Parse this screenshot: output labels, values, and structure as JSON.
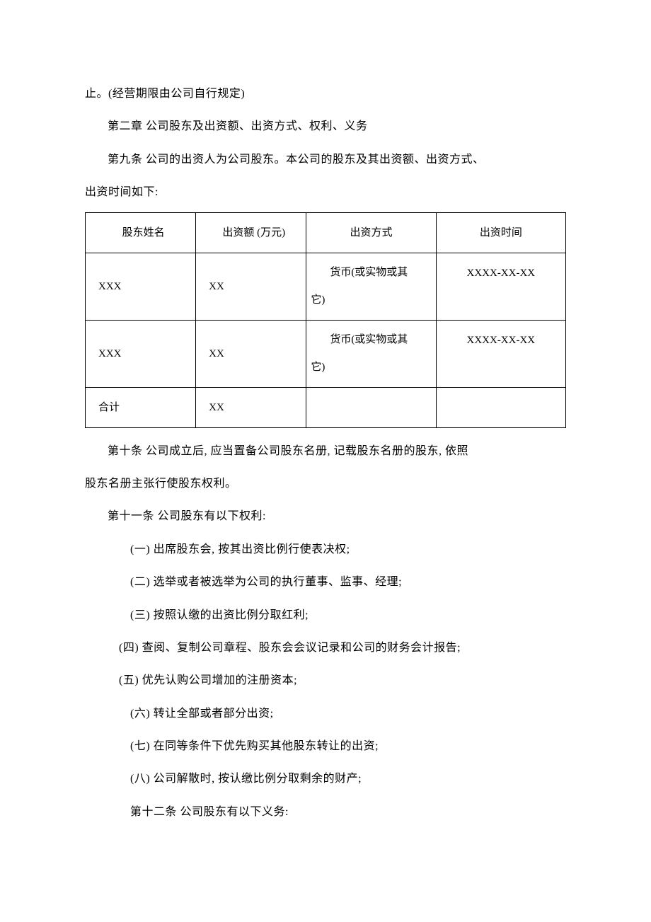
{
  "para1": "止。(经营期限由公司自行规定)",
  "chapter2": "第二章   公司股东及出资额、出资方式、权利、义务",
  "article9": "第九条 公司的出资人为公司股东。本公司的股东及其出资额、出资方式、",
  "article9_cont": "出资时间如下:",
  "table": {
    "headers": [
      "股东姓名",
      "出资额 (万元)",
      "出资方式",
      "出资时间"
    ],
    "rows": [
      {
        "name": "XXX",
        "amount": "XX",
        "method_l1": "货币(或实物或其",
        "method_l2": "它)",
        "date": "XXXX-XX-XX"
      },
      {
        "name": "XXX",
        "amount": "XX",
        "method_l1": "货币(或实物或其",
        "method_l2": "它)",
        "date": "XXXX-XX-XX"
      }
    ],
    "total_label": "合计",
    "total_amount": "XX"
  },
  "article10_l1": "第十条 公司成立后, 应当置备公司股东名册, 记载股东名册的股东, 依照",
  "article10_l2": "股东名册主张行使股东权利。",
  "article11": "第十一条   公司股东有以下权利:",
  "right1": "(一) 出席股东会, 按其出资比例行使表决权;",
  "right2": "(二) 选举或者被选举为公司的执行董事、监事、经理;",
  "right3": "(三) 按照认缴的出资比例分取红利;",
  "right4": "(四) 查阅、复制公司章程、股东会会议记录和公司的财务会计报告;",
  "right5": "(五) 优先认购公司增加的注册资本;",
  "right6": "(六) 转让全部或者部分出资;",
  "right7": "(七) 在同等条件下优先购买其他股东转让的出资;",
  "right8": "(八) 公司解散时, 按认缴比例分取剩余的财产;",
  "article12": "第十二条 公司股东有以下义务:"
}
